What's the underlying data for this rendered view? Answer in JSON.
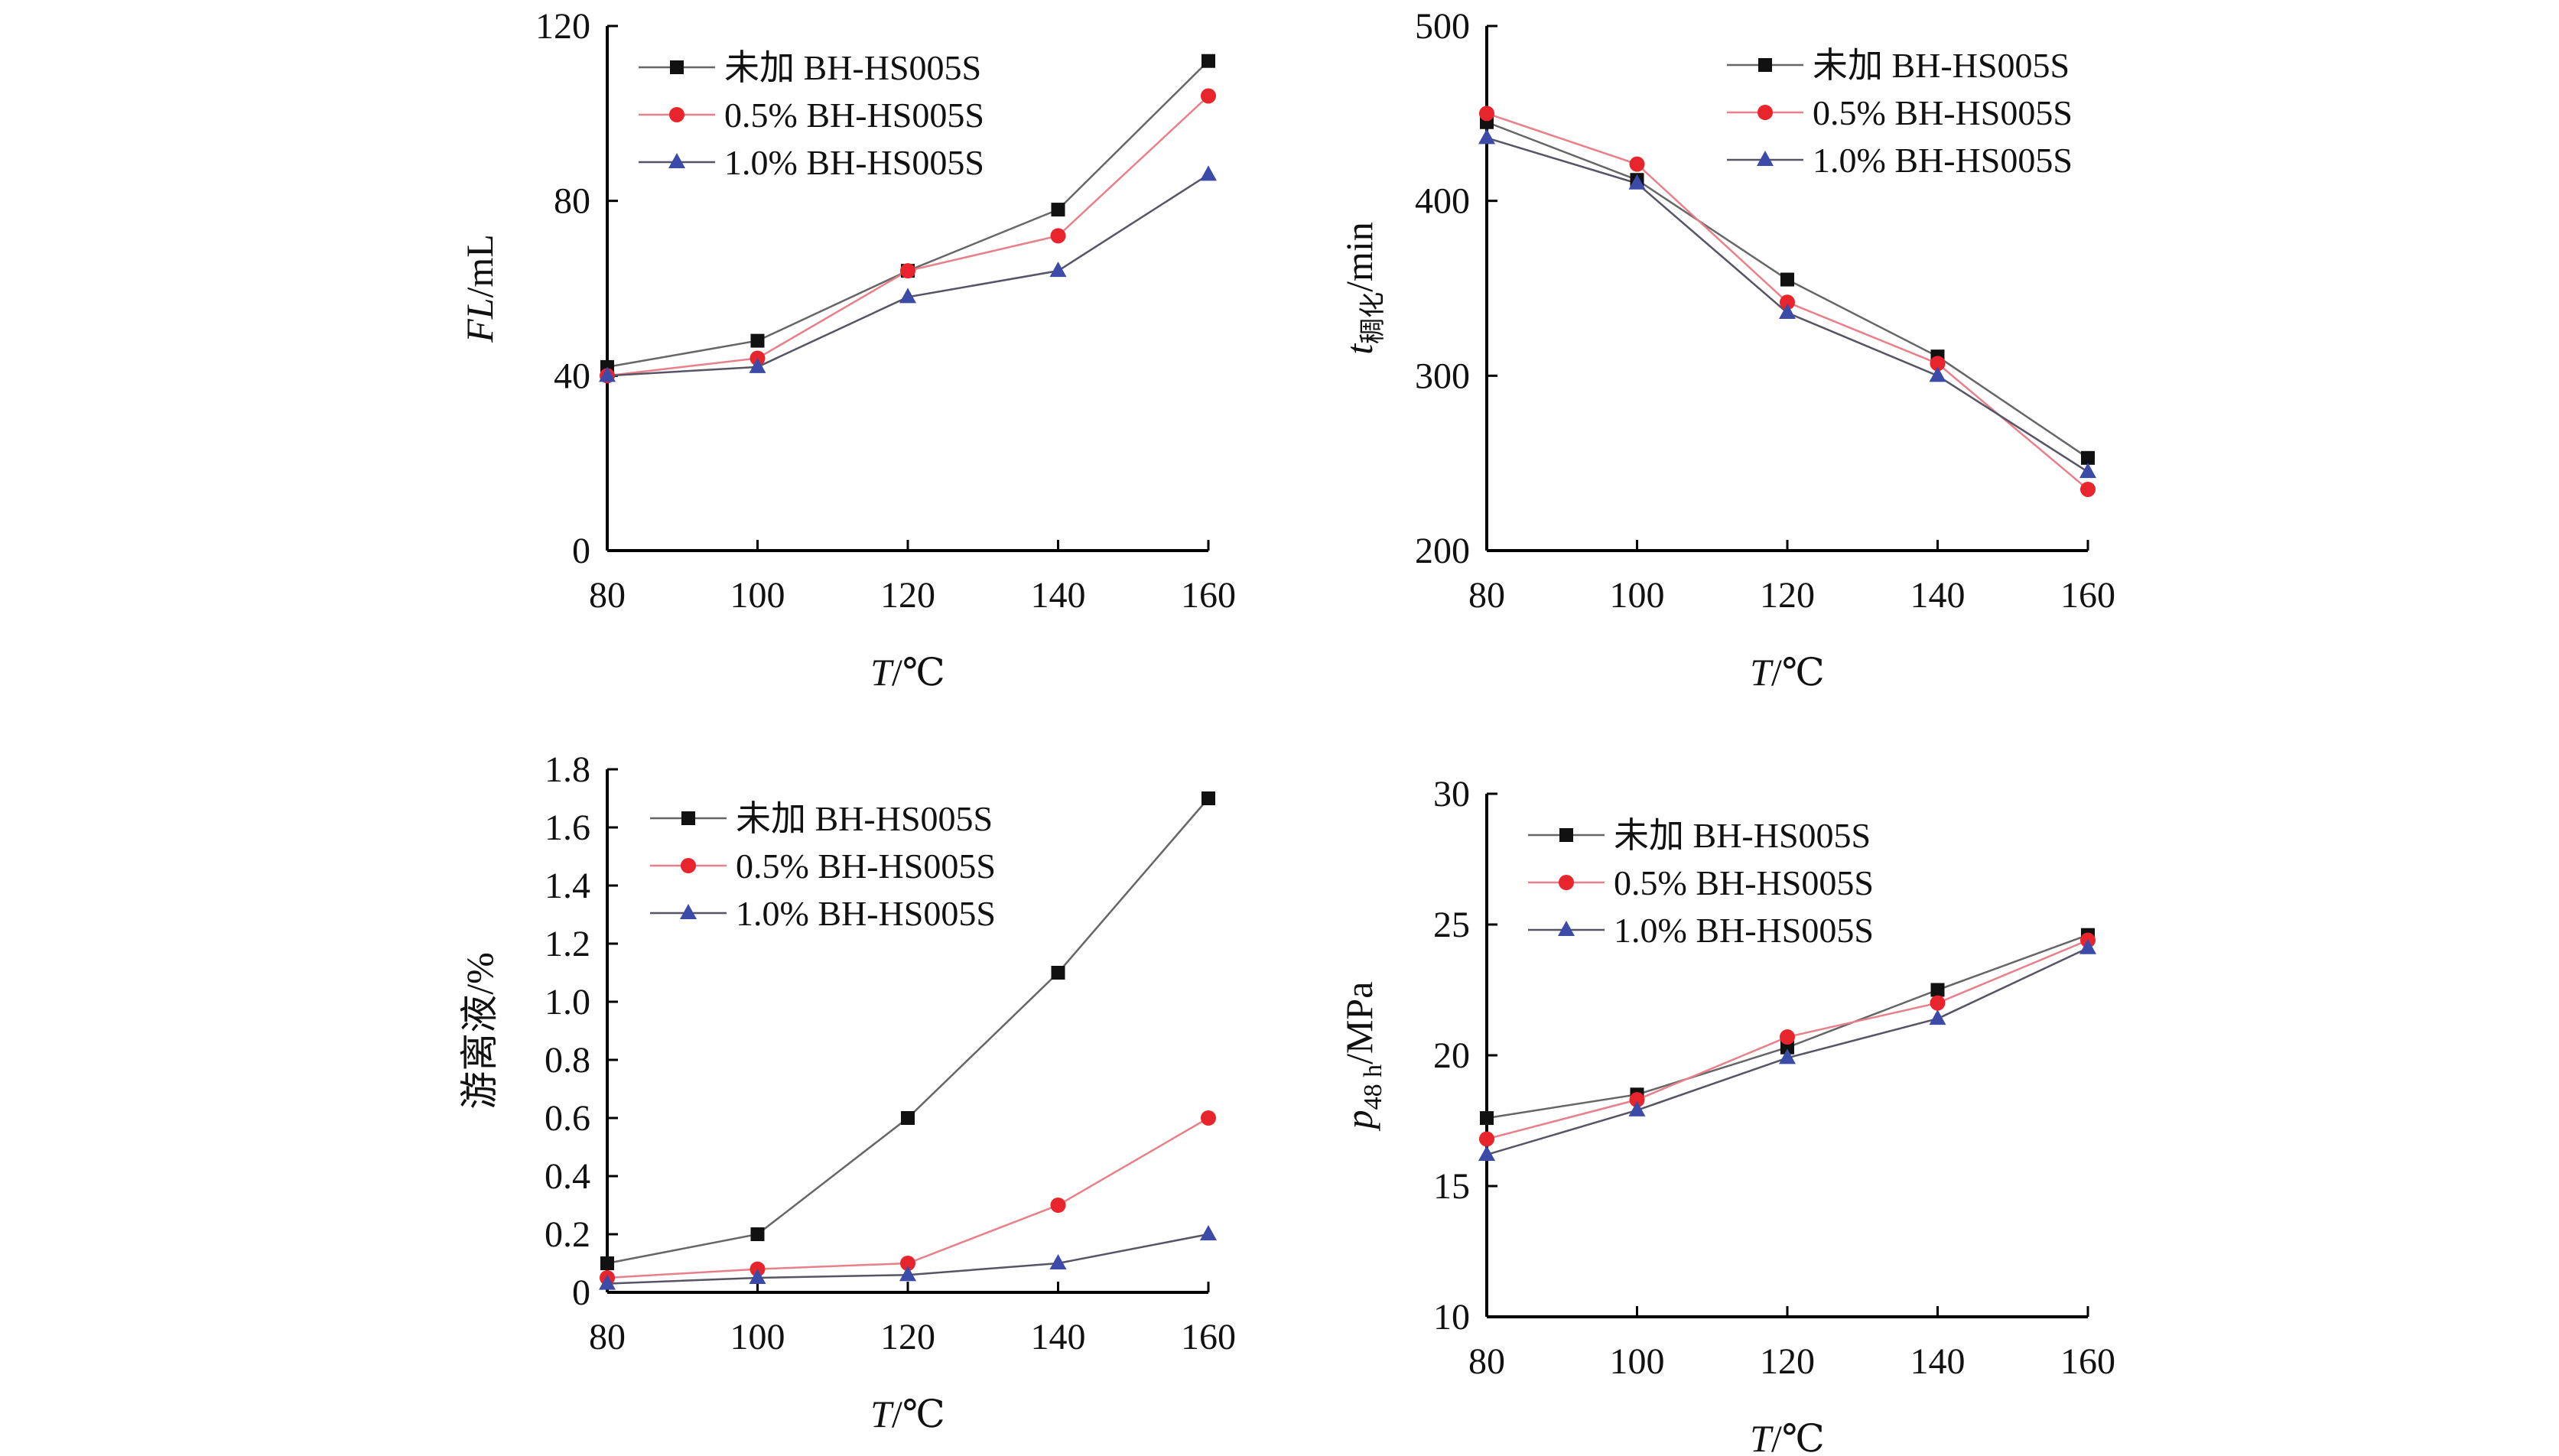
{
  "colors": {
    "axis": "#000000",
    "text": "#111111",
    "series": [
      "#111111",
      "#e8242d",
      "#3c4aa8"
    ],
    "line": [
      "#666666",
      "#e8808a",
      "#555566"
    ]
  },
  "chart_data": [
    {
      "type": "line",
      "x": [
        80,
        100,
        120,
        140,
        160
      ],
      "xticks": [
        "80",
        "100",
        "120",
        "140",
        "160"
      ],
      "xlabel": {
        "italic": "T",
        "rest": "/℃"
      },
      "ylabel": {
        "italic": "FL",
        "sub": "",
        "rest": "/mL"
      },
      "ylim": [
        0,
        120
      ],
      "yticks": [
        "0",
        "40",
        "80",
        "120"
      ],
      "legend_position": "top-left",
      "series": [
        {
          "name": "未加 BH-HS005S",
          "marker": "square",
          "values": [
            42,
            48,
            64,
            78,
            112
          ]
        },
        {
          "name": "0.5% BH-HS005S",
          "marker": "circle",
          "values": [
            40,
            44,
            64,
            72,
            104
          ]
        },
        {
          "name": "1.0% BH-HS005S",
          "marker": "triangle",
          "values": [
            40,
            42,
            58,
            64,
            86
          ]
        }
      ]
    },
    {
      "type": "line",
      "x": [
        80,
        100,
        120,
        140,
        160
      ],
      "xticks": [
        "80",
        "100",
        "120",
        "140",
        "160"
      ],
      "xlabel": {
        "italic": "T",
        "rest": "/℃"
      },
      "ylabel": {
        "italic": "t",
        "sub": "稠化",
        "rest": "/min"
      },
      "ylim": [
        200,
        500
      ],
      "yticks": [
        "200",
        "300",
        "400",
        "500"
      ],
      "legend_position": "top-right",
      "series": [
        {
          "name": "未加 BH-HS005S",
          "marker": "square",
          "values": [
            445,
            412,
            355,
            311,
            253
          ]
        },
        {
          "name": "0.5% BH-HS005S",
          "marker": "circle",
          "values": [
            450,
            421,
            342,
            307,
            235
          ]
        },
        {
          "name": "1.0% BH-HS005S",
          "marker": "triangle",
          "values": [
            436,
            410,
            336,
            300,
            245
          ]
        }
      ]
    },
    {
      "type": "line",
      "x": [
        80,
        100,
        120,
        140,
        160
      ],
      "xticks": [
        "80",
        "100",
        "120",
        "140",
        "160"
      ],
      "xlabel": {
        "italic": "T",
        "rest": "/℃"
      },
      "ylabel": {
        "italic": "",
        "sub": "",
        "rest": "游离液/%"
      },
      "ylim": [
        0,
        1.8
      ],
      "yticks": [
        "0",
        "0.2",
        "0.4",
        "0.6",
        "0.8",
        "1.0",
        "1.2",
        "1.4",
        "1.6",
        "1.8"
      ],
      "legend_position": "top-left",
      "series": [
        {
          "name": "未加 BH-HS005S",
          "marker": "square",
          "values": [
            0.1,
            0.2,
            0.6,
            1.1,
            1.7
          ]
        },
        {
          "name": "0.5% BH-HS005S",
          "marker": "circle",
          "values": [
            0.05,
            0.08,
            0.1,
            0.3,
            0.6
          ]
        },
        {
          "name": "1.0% BH-HS005S",
          "marker": "triangle",
          "values": [
            0.03,
            0.05,
            0.06,
            0.1,
            0.2
          ]
        }
      ]
    },
    {
      "type": "line",
      "x": [
        80,
        100,
        120,
        140,
        160
      ],
      "xticks": [
        "80",
        "100",
        "120",
        "140",
        "160"
      ],
      "xlabel": {
        "italic": "T",
        "rest": "/℃"
      },
      "ylabel": {
        "italic": "p",
        "sub": "48 h",
        "rest": "/MPa"
      },
      "ylim": [
        10,
        30
      ],
      "yticks": [
        "10",
        "15",
        "20",
        "25",
        "30"
      ],
      "legend_position": "top-left",
      "series": [
        {
          "name": "未加 BH-HS005S",
          "marker": "square",
          "values": [
            17.6,
            18.5,
            20.3,
            22.5,
            24.6
          ]
        },
        {
          "name": "0.5% BH-HS005S",
          "marker": "circle",
          "values": [
            16.8,
            18.3,
            20.7,
            22.0,
            24.4
          ]
        },
        {
          "name": "1.0% BH-HS005S",
          "marker": "triangle",
          "values": [
            16.2,
            17.9,
            19.9,
            21.4,
            24.1
          ]
        }
      ]
    }
  ]
}
